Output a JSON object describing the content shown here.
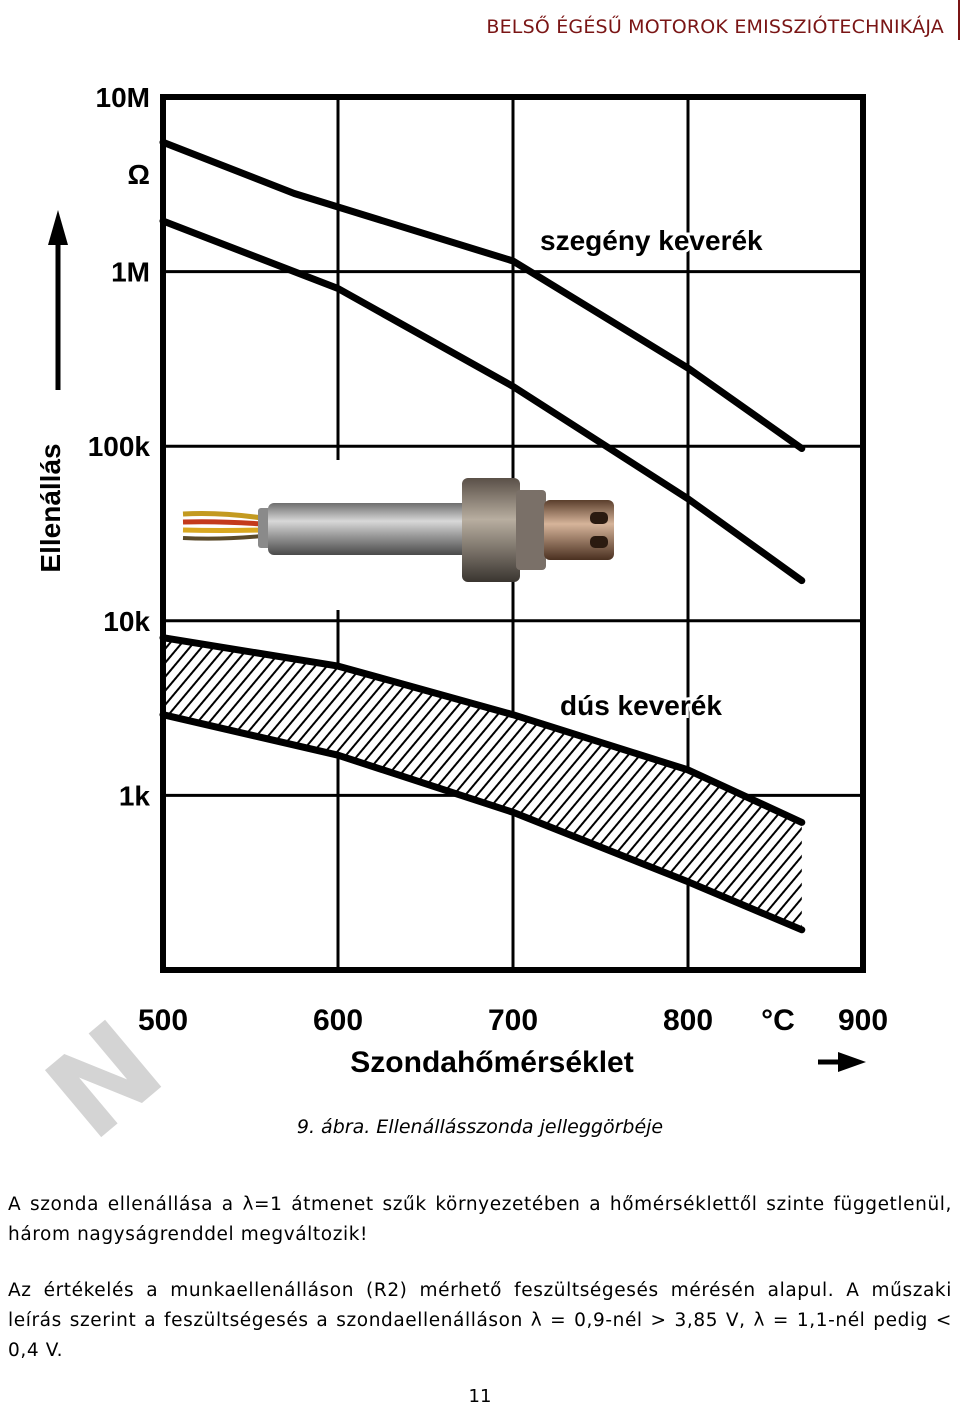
{
  "header": {
    "title": "BELSŐ ÉGÉSŰ MOTOROK EMISSZIÓTECHNIKÁJA"
  },
  "figure": {
    "caption": "9. ábra. Ellenállásszonda jelleggörbéje",
    "sensor_image": "lambda-sensor-photo",
    "annotations": {
      "lean": "szegény keverék",
      "rich": "dús keverék"
    }
  },
  "chart_data": {
    "type": "line",
    "xlabel": "Szondahőmérséklet",
    "ylabel": "Ellenállás",
    "x_unit": "°C",
    "x_ticks": [
      "500",
      "600",
      "700",
      "800",
      "900"
    ],
    "y_ticks": [
      "10M",
      "Ω",
      "1M",
      "100k",
      "10k",
      "1k"
    ],
    "y_scale": "log",
    "xlim": [
      500,
      900
    ],
    "ylim": [
      100,
      10000000
    ],
    "grid": true,
    "series": [
      {
        "name": "szegény keverék",
        "x": [
          500,
          575,
          700,
          800,
          865
        ],
        "y": [
          5500000,
          2800000,
          1150000,
          280000,
          97000
        ]
      },
      {
        "name": "szegény keverék",
        "x": [
          500,
          600,
          700,
          800,
          865
        ],
        "y": [
          1950000,
          800000,
          220000,
          50000,
          17000
        ]
      },
      {
        "name": "dús keverék",
        "x": [
          500,
          600,
          700,
          800,
          865
        ],
        "y": [
          8000,
          5500,
          2900,
          1400,
          700
        ]
      },
      {
        "name": "dús keverék",
        "x": [
          500,
          600,
          700,
          800,
          865
        ],
        "y": [
          2900,
          1700,
          800,
          320,
          170
        ]
      }
    ]
  },
  "paragraphs": [
    "A szonda ellenállása a λ=1 átmenet szűk környezetében a hőmérséklettől szinte függetlenül, három nagyságrenddel megváltozik!",
    "Az értékelés a munkaellenálláson (R2) mérhető feszültségesés mérésén alapul. A műszaki leírás szerint a feszültségesés a szondaellenálláson λ = 0,9-nél > 3,85 V, λ = 1,1-nél pedig < 0,4 V."
  ],
  "page_number": "11",
  "watermark": "N"
}
